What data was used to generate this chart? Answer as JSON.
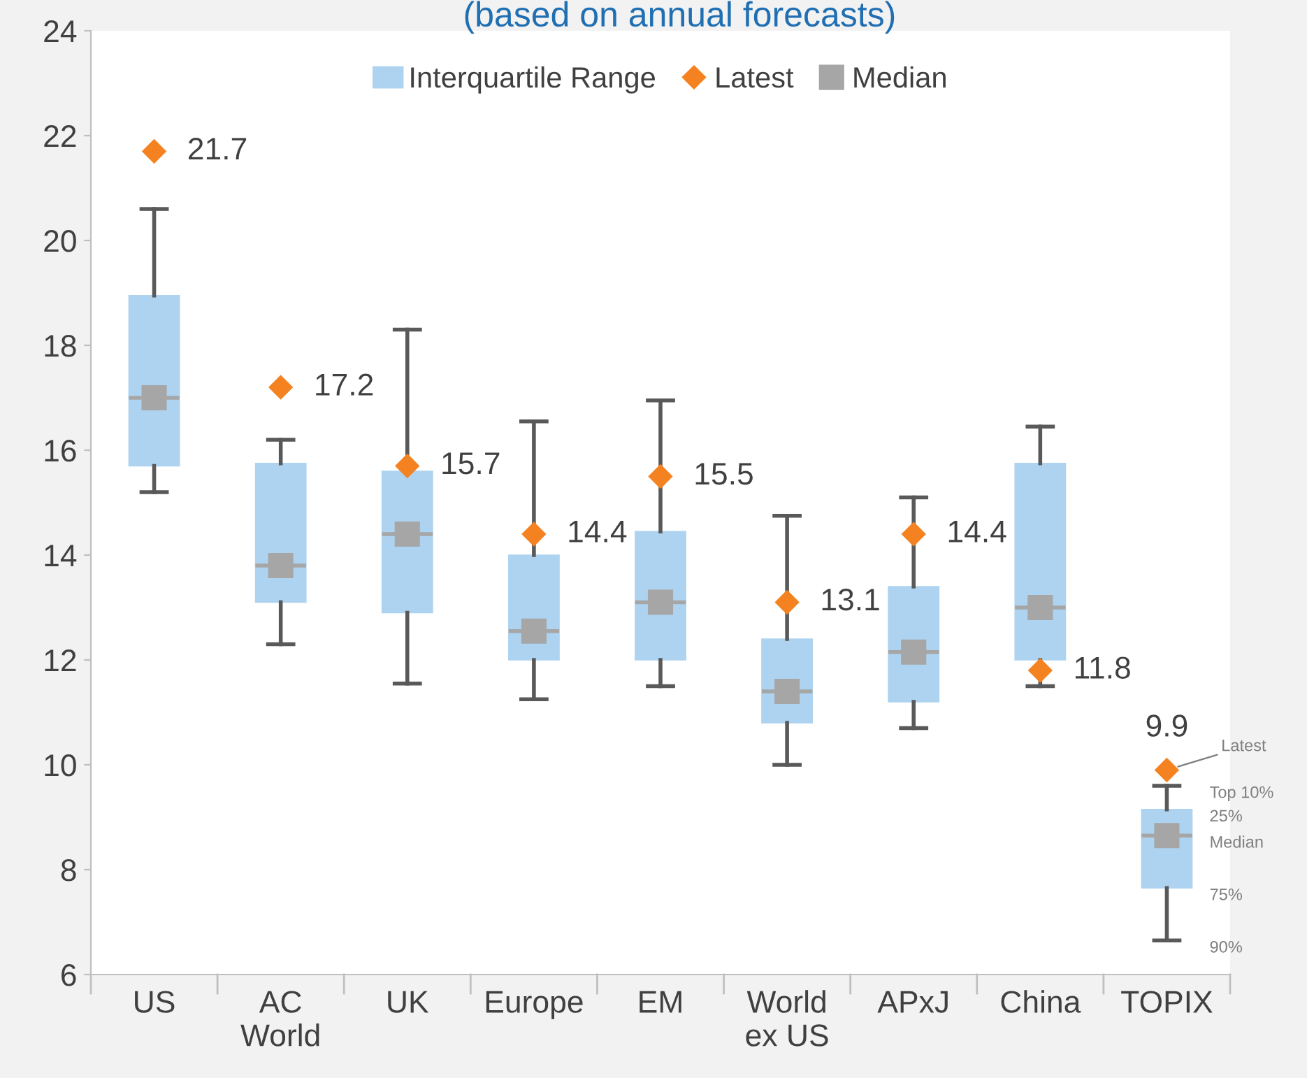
{
  "chart_data": {
    "type": "box",
    "title": "(based on annual forecasts)",
    "categories": [
      "US",
      "AC\nWorld",
      "UK",
      "Europe",
      "EM",
      "World\nex US",
      "APxJ",
      "China",
      "TOPIX"
    ],
    "ylim": [
      6,
      24
    ],
    "yticks": [
      6,
      8,
      10,
      12,
      14,
      16,
      18,
      20,
      22,
      24
    ],
    "grid": false,
    "legend": "top",
    "series": [
      {
        "name": "Interquartile Range",
        "color": "#aed3f0",
        "boxes": [
          {
            "low": 15.2,
            "q1": 15.7,
            "median": 17.0,
            "q3": 18.95,
            "high": 20.6
          },
          {
            "low": 12.3,
            "q1": 13.1,
            "median": 13.8,
            "q3": 15.75,
            "high": 16.2
          },
          {
            "low": 11.55,
            "q1": 12.9,
            "median": 14.4,
            "q3": 15.6,
            "high": 18.3
          },
          {
            "low": 11.25,
            "q1": 12.0,
            "median": 12.55,
            "q3": 14.0,
            "high": 16.55
          },
          {
            "low": 11.5,
            "q1": 12.0,
            "median": 13.1,
            "q3": 14.45,
            "high": 16.95
          },
          {
            "low": 10.0,
            "q1": 10.8,
            "median": 11.4,
            "q3": 12.4,
            "high": 14.75
          },
          {
            "low": 10.7,
            "q1": 11.2,
            "median": 12.15,
            "q3": 13.4,
            "high": 15.1
          },
          {
            "low": 11.5,
            "q1": 12.0,
            "median": 13.0,
            "q3": 15.75,
            "high": 16.45
          },
          {
            "low": 6.65,
            "q1": 7.65,
            "median": 8.65,
            "q3": 9.15,
            "high": 9.6
          }
        ]
      },
      {
        "name": "Latest",
        "type": "scatter",
        "marker": "diamond",
        "color": "#f58220",
        "values": [
          21.7,
          17.2,
          15.7,
          14.4,
          15.5,
          13.1,
          14.4,
          11.8,
          9.9
        ],
        "value_labels": [
          "21.7",
          "17.2",
          "15.7",
          "14.4",
          "15.5",
          "13.1",
          "14.4",
          "11.8",
          "9.9"
        ]
      },
      {
        "name": "Median",
        "type": "scatter",
        "marker": "square",
        "color": "#a6a6a6",
        "values": [
          17.0,
          13.8,
          14.4,
          12.55,
          13.1,
          11.4,
          12.15,
          13.0,
          8.65
        ]
      }
    ],
    "annotations": [
      {
        "text": "Latest",
        "x": "TOPIX",
        "y": 9.9
      },
      "Top 10%",
      "25%",
      "Median",
      "75%",
      "90%"
    ]
  }
}
